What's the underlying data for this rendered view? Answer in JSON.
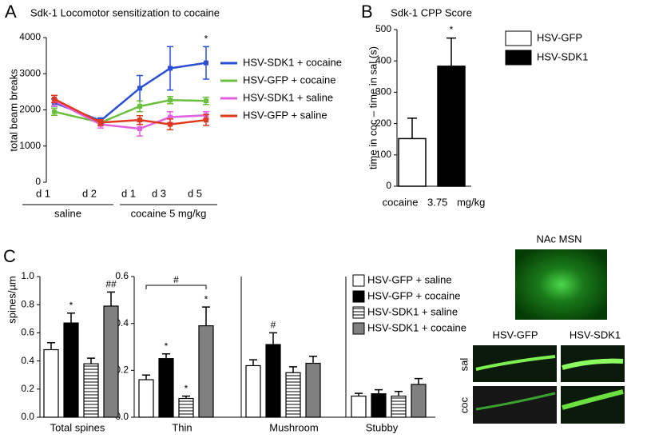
{
  "panel_labels": [
    "A",
    "B",
    "C"
  ],
  "chart_data": [
    {
      "type": "line",
      "title": "Sdk-1 Locomotor sensitization to cocaine",
      "y_label": "total beam breaks",
      "categories": [
        "d 1",
        "d 2",
        "d 1",
        "d 3",
        "d 5"
      ],
      "category_groups": [
        "saline",
        "cocaine 5 mg/kg"
      ],
      "ylim": [
        0,
        4000
      ],
      "yticks": [
        0,
        1000,
        2000,
        3000,
        4000
      ],
      "annotations": [
        "*"
      ],
      "series": [
        {
          "name": "HSV-SDK1 + cocaine",
          "color": "#2a4fd6",
          "values": [
            2200,
            1700,
            2600,
            3150,
            3300
          ],
          "errors": [
            100,
            80,
            350,
            600,
            450
          ]
        },
        {
          "name": "HSV-GFP + cocaine",
          "color": "#6cc040",
          "values": [
            1950,
            1650,
            2100,
            2270,
            2250
          ],
          "errors": [
            100,
            80,
            150,
            100,
            100
          ]
        },
        {
          "name": "HSV-SDK1 + saline",
          "color": "#e060e0",
          "values": [
            2250,
            1600,
            1480,
            1800,
            1850
          ],
          "errors": [
            150,
            100,
            200,
            150,
            100
          ]
        },
        {
          "name": "HSV-GFP + saline",
          "color": "#e03a1e",
          "values": [
            2300,
            1650,
            1720,
            1600,
            1720
          ],
          "errors": [
            100,
            80,
            120,
            150,
            150
          ]
        }
      ]
    },
    {
      "type": "bar",
      "title": "Sdk-1 CPP Score",
      "y_label": "time in coc – time in sal (s)",
      "x_label": "cocaine 3.75 mg/kg",
      "ylim": [
        0,
        500
      ],
      "yticks": [
        0,
        100,
        200,
        300,
        400,
        500
      ],
      "annotations": [
        "*"
      ],
      "series": [
        {
          "name": "HSV-GFP",
          "color": "#ffffff",
          "values": [
            152
          ],
          "errors": [
            65
          ]
        },
        {
          "name": "HSV-SDK1",
          "color": "#000000",
          "values": [
            383
          ],
          "errors": [
            90
          ]
        }
      ]
    },
    {
      "type": "grouped_bar",
      "y_label": "spines/µm",
      "categories": [
        "Total spines",
        "Thin",
        "Mushroom",
        "Stubby"
      ],
      "ylim": [
        0,
        1
      ],
      "yticks": [
        {
          "value": 0,
          "label": "0.0"
        },
        0.2,
        0.4,
        0.6,
        0.8,
        {
          "value": 1,
          "label": "1.0"
        }
      ],
      "y2lim": [
        0,
        0.6
      ],
      "y2ticks": [
        {
          "value": 0,
          "label": "0.0"
        },
        0.2,
        0.4,
        0.6
      ],
      "annotations": [
        "*",
        "##",
        "*",
        "*",
        "*",
        "#",
        "#"
      ],
      "series": [
        {
          "name": "HSV-GFP + saline",
          "color": "#ffffff",
          "values": [
            0.48,
            0.16,
            0.22,
            0.09
          ],
          "errors": [
            0.05,
            0.02,
            0.025,
            0.012
          ]
        },
        {
          "name": "HSV-GFP + cocaine",
          "color": "#000000",
          "values": [
            0.67,
            0.25,
            0.31,
            0.1
          ],
          "errors": [
            0.07,
            0.02,
            0.05,
            0.017
          ]
        },
        {
          "name": "HSV-SDK1 + saline",
          "color": "#ffffff",
          "hatch": "horizontal",
          "values": [
            0.38,
            0.08,
            0.19,
            0.09
          ],
          "errors": [
            0.04,
            0.01,
            0.025,
            0.02
          ]
        },
        {
          "name": "HSV-SDK1 + cocaine",
          "color": "#808080",
          "values": [
            0.79,
            0.39,
            0.23,
            0.14
          ],
          "errors": [
            0.1,
            0.08,
            0.03,
            0.025
          ]
        }
      ]
    }
  ],
  "images": {
    "title": "NAc MSN",
    "columns": [
      "HSV-GFP",
      "HSV-SDK1"
    ],
    "rows": [
      "sal",
      "coc"
    ]
  }
}
